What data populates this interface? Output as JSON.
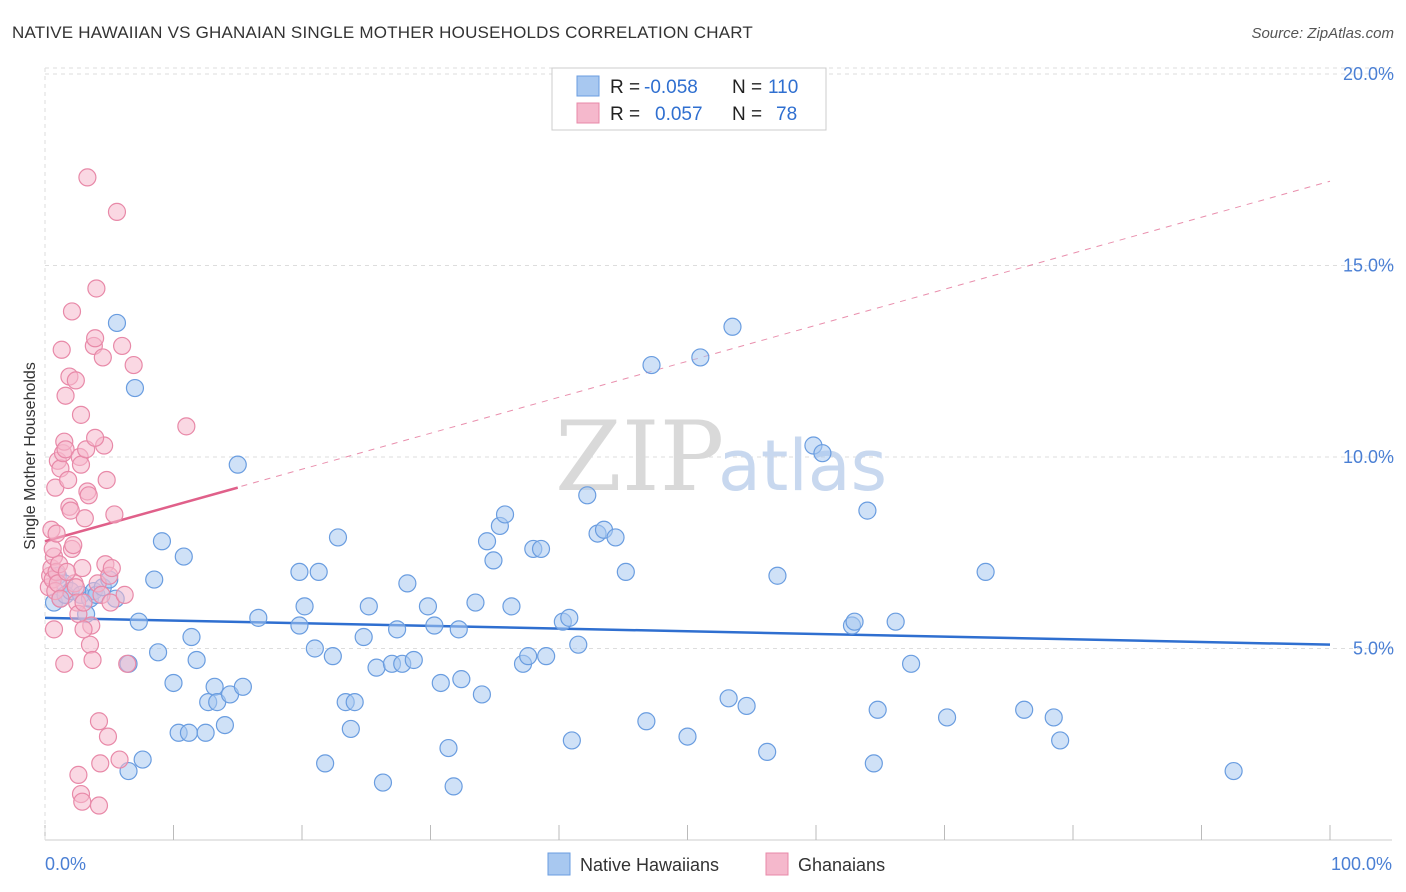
{
  "title": "NATIVE HAWAIIAN VS GHANAIAN SINGLE MOTHER HOUSEHOLDS CORRELATION CHART",
  "source": "Source: ZipAtlas.com",
  "watermark": {
    "zip": "ZIP",
    "atlas": "atlas"
  },
  "colors": {
    "blue_fill": "#a8c8f0",
    "blue_stroke": "#6a9de0",
    "blue_line": "#2f6fd0",
    "pink_fill": "#f5b8cc",
    "pink_stroke": "#e889a8",
    "pink_line": "#e0608a",
    "grid": "#dddddd",
    "tick_text": "#4a7fd4"
  },
  "legend": {
    "rows": [
      {
        "r_label": "R =",
        "r_value": "-0.058",
        "n_label": "N =",
        "n_value": "110",
        "series": "blue"
      },
      {
        "r_label": "R =",
        "r_value": "0.057",
        "n_label": "N =",
        "n_value": "78",
        "series": "pink"
      }
    ]
  },
  "bottom_legend": [
    "Native Hawaiians",
    "Ghanaians"
  ],
  "chart_data": {
    "type": "scatter",
    "title": "NATIVE HAWAIIAN VS GHANAIAN SINGLE MOTHER HOUSEHOLDS CORRELATION CHART",
    "xlabel": "",
    "ylabel": "Single Mother Households",
    "xlim": [
      0,
      100
    ],
    "ylim": [
      0,
      20.5
    ],
    "x_tick_labels": [
      "0.0%",
      "100.0%"
    ],
    "y_ticks": [
      5,
      10,
      15,
      20
    ],
    "y_tick_labels": [
      "5.0%",
      "10.0%",
      "15.0%",
      "20.0%"
    ],
    "grid": true,
    "legend_position": "top-center",
    "series": [
      {
        "name": "Native Hawaiians",
        "color": "blue",
        "R": -0.058,
        "N": 110,
        "trend": {
          "x": [
            0,
            100
          ],
          "y": [
            5.8,
            5.1
          ],
          "style": "solid"
        },
        "points": [
          [
            0.7,
            6.2
          ],
          [
            1.0,
            6.9
          ],
          [
            1.2,
            6.3
          ],
          [
            1.5,
            6.7
          ],
          [
            1.6,
            6.4
          ],
          [
            2.0,
            6.5
          ],
          [
            2.8,
            6.4
          ],
          [
            3.2,
            5.9
          ],
          [
            3.5,
            6.3
          ],
          [
            3.8,
            6.5
          ],
          [
            4.0,
            6.4
          ],
          [
            4.5,
            6.6
          ],
          [
            5.0,
            6.8
          ],
          [
            5.5,
            6.3
          ],
          [
            5.6,
            13.5
          ],
          [
            6.5,
            4.6
          ],
          [
            7.0,
            11.8
          ],
          [
            7.3,
            5.7
          ],
          [
            7.6,
            2.1
          ],
          [
            8.5,
            6.8
          ],
          [
            8.8,
            4.9
          ],
          [
            9.1,
            7.8
          ],
          [
            10.0,
            4.1
          ],
          [
            10.4,
            2.8
          ],
          [
            10.8,
            7.4
          ],
          [
            11.2,
            2.8
          ],
          [
            11.4,
            5.3
          ],
          [
            11.8,
            4.7
          ],
          [
            12.5,
            2.8
          ],
          [
            12.7,
            3.6
          ],
          [
            13.2,
            4.0
          ],
          [
            13.4,
            3.6
          ],
          [
            14.0,
            3.0
          ],
          [
            14.4,
            3.8
          ],
          [
            15.0,
            9.8
          ],
          [
            15.4,
            4.0
          ],
          [
            16.6,
            5.8
          ],
          [
            19.8,
            7.0
          ],
          [
            19.8,
            5.6
          ],
          [
            20.2,
            6.1
          ],
          [
            21.0,
            5.0
          ],
          [
            21.3,
            7.0
          ],
          [
            21.8,
            2.0
          ],
          [
            22.4,
            4.8
          ],
          [
            22.8,
            7.9
          ],
          [
            23.4,
            3.6
          ],
          [
            23.8,
            2.9
          ],
          [
            24.1,
            3.6
          ],
          [
            24.8,
            5.3
          ],
          [
            25.2,
            6.1
          ],
          [
            25.8,
            4.5
          ],
          [
            26.3,
            1.5
          ],
          [
            27.0,
            4.6
          ],
          [
            27.4,
            5.5
          ],
          [
            27.8,
            4.6
          ],
          [
            28.2,
            6.7
          ],
          [
            28.7,
            4.7
          ],
          [
            29.8,
            6.1
          ],
          [
            30.3,
            5.6
          ],
          [
            30.8,
            4.1
          ],
          [
            31.4,
            2.4
          ],
          [
            31.8,
            1.4
          ],
          [
            32.2,
            5.5
          ],
          [
            32.4,
            4.2
          ],
          [
            33.5,
            6.2
          ],
          [
            34.0,
            3.8
          ],
          [
            34.4,
            7.8
          ],
          [
            34.9,
            7.3
          ],
          [
            35.4,
            8.2
          ],
          [
            35.8,
            8.5
          ],
          [
            36.3,
            6.1
          ],
          [
            37.2,
            4.6
          ],
          [
            37.6,
            4.8
          ],
          [
            38.0,
            7.6
          ],
          [
            38.6,
            7.6
          ],
          [
            39.0,
            4.8
          ],
          [
            40.3,
            5.7
          ],
          [
            40.8,
            5.8
          ],
          [
            41.0,
            2.6
          ],
          [
            41.5,
            5.1
          ],
          [
            42.2,
            9.0
          ],
          [
            43.0,
            8.0
          ],
          [
            43.5,
            8.1
          ],
          [
            44.4,
            7.9
          ],
          [
            45.2,
            7.0
          ],
          [
            46.8,
            3.1
          ],
          [
            47.2,
            12.4
          ],
          [
            50.0,
            2.7
          ],
          [
            51.0,
            12.6
          ],
          [
            53.2,
            3.7
          ],
          [
            53.5,
            13.4
          ],
          [
            54.6,
            3.5
          ],
          [
            56.2,
            2.3
          ],
          [
            57.0,
            6.9
          ],
          [
            59.8,
            10.3
          ],
          [
            60.5,
            10.1
          ],
          [
            62.8,
            5.6
          ],
          [
            63.0,
            5.7
          ],
          [
            64.0,
            8.6
          ],
          [
            64.5,
            2.0
          ],
          [
            64.8,
            3.4
          ],
          [
            66.2,
            5.7
          ],
          [
            67.4,
            4.6
          ],
          [
            70.2,
            3.2
          ],
          [
            73.2,
            7.0
          ],
          [
            76.2,
            3.4
          ],
          [
            78.5,
            3.2
          ],
          [
            79.0,
            2.6
          ],
          [
            92.5,
            1.8
          ],
          [
            6.5,
            1.8
          ]
        ]
      },
      {
        "name": "Ghanaians",
        "color": "pink",
        "R": 0.057,
        "N": 78,
        "trend": {
          "x": [
            0,
            15
          ],
          "y": [
            7.8,
            9.2
          ],
          "style": "solid",
          "extended": {
            "x": [
              0,
              100
            ],
            "y": [
              7.8,
              17.2
            ],
            "style": "dashed"
          }
        },
        "points": [
          [
            0.3,
            6.6
          ],
          [
            0.4,
            6.9
          ],
          [
            0.5,
            7.1
          ],
          [
            0.6,
            6.8
          ],
          [
            0.7,
            7.4
          ],
          [
            0.8,
            6.5
          ],
          [
            0.9,
            7.0
          ],
          [
            1.0,
            6.7
          ],
          [
            1.1,
            7.2
          ],
          [
            1.2,
            6.3
          ],
          [
            0.5,
            8.1
          ],
          [
            0.6,
            7.6
          ],
          [
            0.8,
            9.2
          ],
          [
            0.9,
            8.0
          ],
          [
            1.0,
            9.9
          ],
          [
            1.2,
            9.7
          ],
          [
            1.4,
            10.1
          ],
          [
            1.5,
            10.4
          ],
          [
            1.6,
            10.2
          ],
          [
            1.8,
            9.4
          ],
          [
            1.9,
            8.7
          ],
          [
            2.0,
            8.6
          ],
          [
            2.1,
            7.6
          ],
          [
            2.2,
            7.7
          ],
          [
            2.3,
            6.7
          ],
          [
            2.4,
            6.6
          ],
          [
            2.5,
            6.2
          ],
          [
            2.6,
            5.9
          ],
          [
            2.7,
            10.0
          ],
          [
            2.8,
            9.8
          ],
          [
            2.9,
            7.1
          ],
          [
            3.0,
            6.2
          ],
          [
            3.1,
            8.4
          ],
          [
            3.2,
            10.2
          ],
          [
            3.3,
            9.1
          ],
          [
            3.4,
            9.0
          ],
          [
            3.5,
            5.1
          ],
          [
            3.6,
            5.6
          ],
          [
            3.7,
            4.7
          ],
          [
            3.8,
            12.9
          ],
          [
            3.9,
            13.1
          ],
          [
            4.0,
            14.4
          ],
          [
            4.1,
            6.7
          ],
          [
            4.2,
            3.1
          ],
          [
            4.3,
            2.0
          ],
          [
            4.4,
            6.4
          ],
          [
            4.5,
            12.6
          ],
          [
            4.6,
            10.3
          ],
          [
            4.7,
            7.2
          ],
          [
            4.8,
            9.4
          ],
          [
            4.9,
            2.7
          ],
          [
            5.0,
            6.9
          ],
          [
            5.1,
            6.2
          ],
          [
            5.2,
            7.1
          ],
          [
            5.4,
            8.5
          ],
          [
            5.6,
            16.4
          ],
          [
            5.8,
            2.1
          ],
          [
            6.0,
            12.9
          ],
          [
            6.2,
            6.4
          ],
          [
            6.4,
            4.6
          ],
          [
            1.3,
            12.8
          ],
          [
            1.6,
            11.6
          ],
          [
            1.9,
            12.1
          ],
          [
            2.1,
            13.8
          ],
          [
            2.4,
            12.0
          ],
          [
            2.8,
            11.1
          ],
          [
            3.3,
            17.3
          ],
          [
            3.9,
            10.5
          ],
          [
            0.7,
            5.5
          ],
          [
            1.5,
            4.6
          ],
          [
            2.6,
            1.7
          ],
          [
            2.8,
            1.2
          ],
          [
            2.9,
            1.0
          ],
          [
            3.0,
            5.5
          ],
          [
            6.9,
            12.4
          ],
          [
            11.0,
            10.8
          ],
          [
            4.2,
            0.9
          ],
          [
            1.7,
            7.0
          ]
        ]
      }
    ]
  }
}
